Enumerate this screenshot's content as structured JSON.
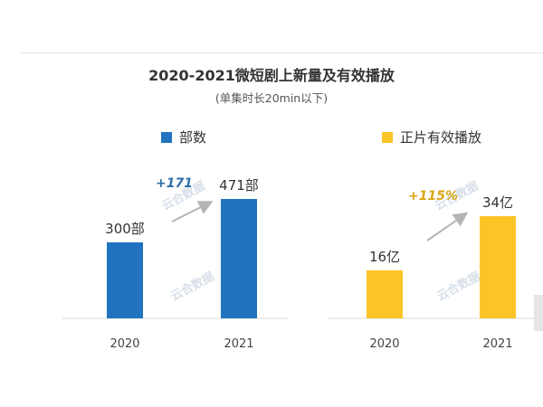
{
  "title": "2020-2021微短剧上新量及有效播放",
  "subtitle": "(单集时长20min以下)",
  "watermark": "云合数据",
  "colors": {
    "blue": "#2173c0",
    "yellow": "#fbc528",
    "arrow": "#b4b4b4",
    "blue_text": "#2f6da8",
    "gold_text": "#d9a511"
  },
  "chart_data": [
    {
      "type": "bar",
      "categories": [
        "2020",
        "2021"
      ],
      "series": [
        {
          "name": "部数",
          "values": [
            300,
            471
          ],
          "labels": [
            "300部",
            "471部"
          ]
        }
      ],
      "annotation": "+171",
      "xlabel": "",
      "ylabel": ""
    },
    {
      "type": "bar",
      "categories": [
        "2020",
        "2021"
      ],
      "series": [
        {
          "name": "正片有效播放",
          "values": [
            16,
            34
          ],
          "labels": [
            "16亿",
            "34亿"
          ]
        }
      ],
      "annotation": "+115%",
      "xlabel": "",
      "ylabel": ""
    }
  ]
}
